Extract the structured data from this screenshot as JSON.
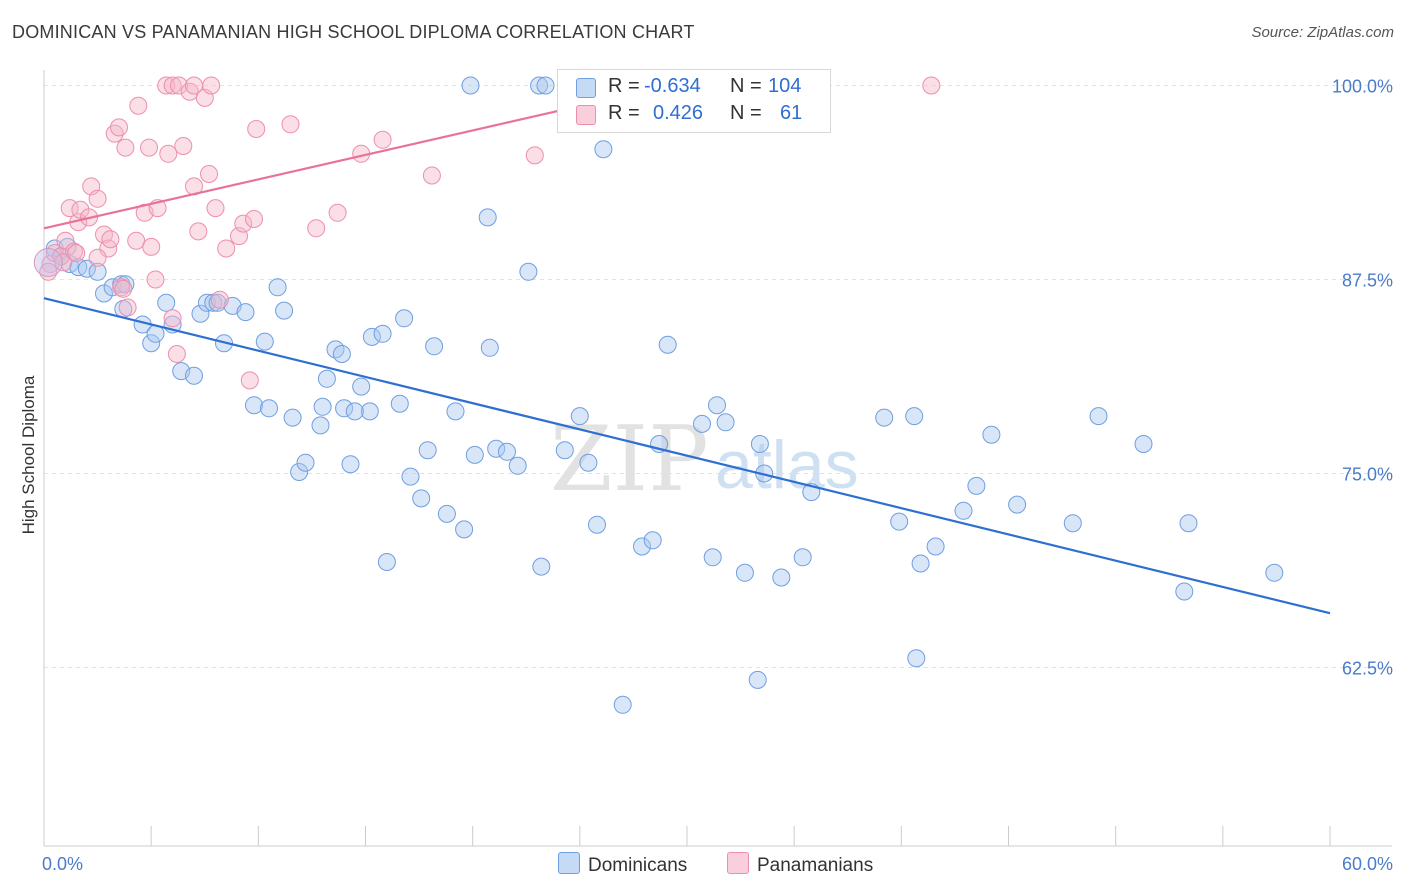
{
  "title": "DOMINICAN VS PANAMANIAN HIGH SCHOOL DIPLOMA CORRELATION CHART",
  "source": "Source: ZipAtlas.com",
  "watermark": {
    "zip": "ZIP",
    "atlas": "atlas"
  },
  "legend": {
    "rows": [
      {
        "r_label": "R =",
        "r_value": "-0.634",
        "n_label": "N =",
        "n_value": "104",
        "color": "#a9c8f0"
      },
      {
        "r_label": "R =",
        "r_value": "0.426",
        "n_label": "N =",
        "n_value": "61",
        "color": "#f5b7ca"
      }
    ]
  },
  "bottom_legend": [
    {
      "label": "Dominicans",
      "color": "#a9c8f0"
    },
    {
      "label": "Panamanians",
      "color": "#f5b7ca"
    }
  ],
  "chart_data": {
    "type": "scatter",
    "title": "DOMINICAN VS PANAMANIAN HIGH SCHOOL DIPLOMA CORRELATION CHART",
    "xlabel": "",
    "ylabel": "High School Diploma",
    "xlim": [
      0,
      60
    ],
    "ylim": [
      51,
      101
    ],
    "x_tick_labels": [
      {
        "value": 0,
        "label": "0.0%"
      },
      {
        "value": 60,
        "label": "60.0%"
      }
    ],
    "y_tick_labels": [
      {
        "value": 100,
        "label": "100.0%"
      },
      {
        "value": 87.5,
        "label": "87.5%"
      },
      {
        "value": 75,
        "label": "75.0%"
      },
      {
        "value": 62.5,
        "label": "62.5%"
      }
    ],
    "grid": true,
    "legend_position": "top-center",
    "series": [
      {
        "name": "Dominicans",
        "color": "#a9c8f0",
        "stroke": "#6f9fe0",
        "trend": {
          "x": [
            0,
            60
          ],
          "y": [
            86.3,
            66
          ],
          "color": "#2f6fd0"
        },
        "points": [
          [
            0.5,
            89.5
          ],
          [
            0.8,
            89
          ],
          [
            1.1,
            89.6
          ],
          [
            1.2,
            88.5
          ],
          [
            1.6,
            88.3
          ],
          [
            2.0,
            88.2
          ],
          [
            2.5,
            88.0
          ],
          [
            2.8,
            86.6
          ],
          [
            3.2,
            87.0
          ],
          [
            3.6,
            87.2
          ],
          [
            3.8,
            87.2
          ],
          [
            3.7,
            85.6
          ],
          [
            4.6,
            84.6
          ],
          [
            5.0,
            83.4
          ],
          [
            5.2,
            84.0
          ],
          [
            5.7,
            86.0
          ],
          [
            6.0,
            84.6
          ],
          [
            6.4,
            81.6
          ],
          [
            7.0,
            81.3
          ],
          [
            7.3,
            85.3
          ],
          [
            7.6,
            86.0
          ],
          [
            7.9,
            86.0
          ],
          [
            8.1,
            86.0
          ],
          [
            8.4,
            83.4
          ],
          [
            8.8,
            85.8
          ],
          [
            9.4,
            85.4
          ],
          [
            9.8,
            79.4
          ],
          [
            10.3,
            83.5
          ],
          [
            10.5,
            79.2
          ],
          [
            10.9,
            87.0
          ],
          [
            11.2,
            85.5
          ],
          [
            11.6,
            78.6
          ],
          [
            11.9,
            75.1
          ],
          [
            12.2,
            75.7
          ],
          [
            12.9,
            78.1
          ],
          [
            13.0,
            79.3
          ],
          [
            13.2,
            81.1
          ],
          [
            13.6,
            83.0
          ],
          [
            13.9,
            82.7
          ],
          [
            14.0,
            79.2
          ],
          [
            14.3,
            75.6
          ],
          [
            14.8,
            80.6
          ],
          [
            15.2,
            79.0
          ],
          [
            15.3,
            83.8
          ],
          [
            15.8,
            84.0
          ],
          [
            16.0,
            69.3
          ],
          [
            16.6,
            79.5
          ],
          [
            16.8,
            85.0
          ],
          [
            17.1,
            74.8
          ],
          [
            17.6,
            73.4
          ],
          [
            17.9,
            76.5
          ],
          [
            18.2,
            83.2
          ],
          [
            18.8,
            72.4
          ],
          [
            19.2,
            79.0
          ],
          [
            19.6,
            71.4
          ],
          [
            20.1,
            76.2
          ],
          [
            20.8,
            83.1
          ],
          [
            21.1,
            76.6
          ],
          [
            21.6,
            76.4
          ],
          [
            22.1,
            75.5
          ],
          [
            22.6,
            88.0
          ],
          [
            23.2,
            69.0
          ],
          [
            24.3,
            76.5
          ],
          [
            25.0,
            78.7
          ],
          [
            25.4,
            75.7
          ],
          [
            25.8,
            71.7
          ],
          [
            26.1,
            95.9
          ],
          [
            27.0,
            60.1
          ],
          [
            27.9,
            70.3
          ],
          [
            28.4,
            70.7
          ],
          [
            28.7,
            76.9
          ],
          [
            29.1,
            83.3
          ],
          [
            30.7,
            78.2
          ],
          [
            31.2,
            69.6
          ],
          [
            31.4,
            79.4
          ],
          [
            31.8,
            78.3
          ],
          [
            32.7,
            68.6
          ],
          [
            33.3,
            61.7
          ],
          [
            33.4,
            76.9
          ],
          [
            33.6,
            75.0
          ],
          [
            34.4,
            68.3
          ],
          [
            35.4,
            69.6
          ],
          [
            35.8,
            73.8
          ],
          [
            39.2,
            78.6
          ],
          [
            39.9,
            71.9
          ],
          [
            40.6,
            78.7
          ],
          [
            40.7,
            63.1
          ],
          [
            40.9,
            69.2
          ],
          [
            41.6,
            70.3
          ],
          [
            42.9,
            72.6
          ],
          [
            43.5,
            74.2
          ],
          [
            44.2,
            77.5
          ],
          [
            45.4,
            73.0
          ],
          [
            48.0,
            71.8
          ],
          [
            49.2,
            78.7
          ],
          [
            51.3,
            76.9
          ],
          [
            53.2,
            67.4
          ],
          [
            53.4,
            71.8
          ],
          [
            57.4,
            68.6
          ],
          [
            20.7,
            91.5
          ],
          [
            19.9,
            100.0
          ],
          [
            23.1,
            100.0
          ],
          [
            23.4,
            100.0
          ],
          [
            14.5,
            79.0
          ]
        ]
      },
      {
        "name": "Panamanians",
        "color": "#f5b7ca",
        "stroke": "#ee8eae",
        "trend": {
          "x": [
            0,
            29.5
          ],
          "y": [
            90.8,
            100.1
          ],
          "color": "#e8739a"
        },
        "points": [
          [
            0.3,
            88.5
          ],
          [
            0.5,
            89.2
          ],
          [
            0.8,
            89.0
          ],
          [
            1.0,
            90.0
          ],
          [
            1.2,
            92.1
          ],
          [
            1.4,
            89.3
          ],
          [
            1.6,
            91.2
          ],
          [
            1.7,
            92.0
          ],
          [
            2.1,
            91.5
          ],
          [
            2.2,
            93.5
          ],
          [
            2.5,
            92.7
          ],
          [
            2.8,
            90.4
          ],
          [
            3.0,
            89.5
          ],
          [
            3.1,
            90.1
          ],
          [
            3.3,
            96.9
          ],
          [
            3.5,
            97.3
          ],
          [
            3.6,
            87.0
          ],
          [
            3.8,
            96.0
          ],
          [
            3.9,
            85.7
          ],
          [
            4.3,
            90.0
          ],
          [
            4.4,
            98.7
          ],
          [
            4.7,
            91.8
          ],
          [
            4.9,
            96.0
          ],
          [
            5.0,
            89.6
          ],
          [
            5.2,
            87.5
          ],
          [
            5.3,
            92.1
          ],
          [
            5.7,
            100.0
          ],
          [
            5.8,
            95.6
          ],
          [
            6.0,
            100.0
          ],
          [
            6.3,
            100.0
          ],
          [
            6.2,
            82.7
          ],
          [
            6.5,
            96.1
          ],
          [
            6.8,
            99.6
          ],
          [
            7.0,
            93.5
          ],
          [
            7.2,
            90.6
          ],
          [
            7.5,
            99.2
          ],
          [
            7.7,
            94.3
          ],
          [
            7.8,
            100.0
          ],
          [
            8.0,
            92.1
          ],
          [
            8.2,
            86.2
          ],
          [
            8.5,
            89.5
          ],
          [
            9.1,
            90.3
          ],
          [
            9.3,
            91.1
          ],
          [
            9.6,
            81.0
          ],
          [
            9.8,
            91.4
          ],
          [
            9.9,
            97.2
          ],
          [
            11.5,
            97.5
          ],
          [
            12.7,
            90.8
          ],
          [
            13.7,
            91.8
          ],
          [
            14.8,
            95.6
          ],
          [
            15.8,
            96.5
          ],
          [
            18.1,
            94.2
          ],
          [
            22.9,
            95.5
          ],
          [
            41.4,
            100.0
          ],
          [
            0.2,
            88.0
          ],
          [
            0.9,
            88.6
          ],
          [
            1.5,
            89.2
          ],
          [
            6.0,
            85.0
          ],
          [
            2.5,
            88.9
          ],
          [
            3.7,
            86.9
          ],
          [
            7.0,
            100.0
          ]
        ]
      }
    ]
  }
}
